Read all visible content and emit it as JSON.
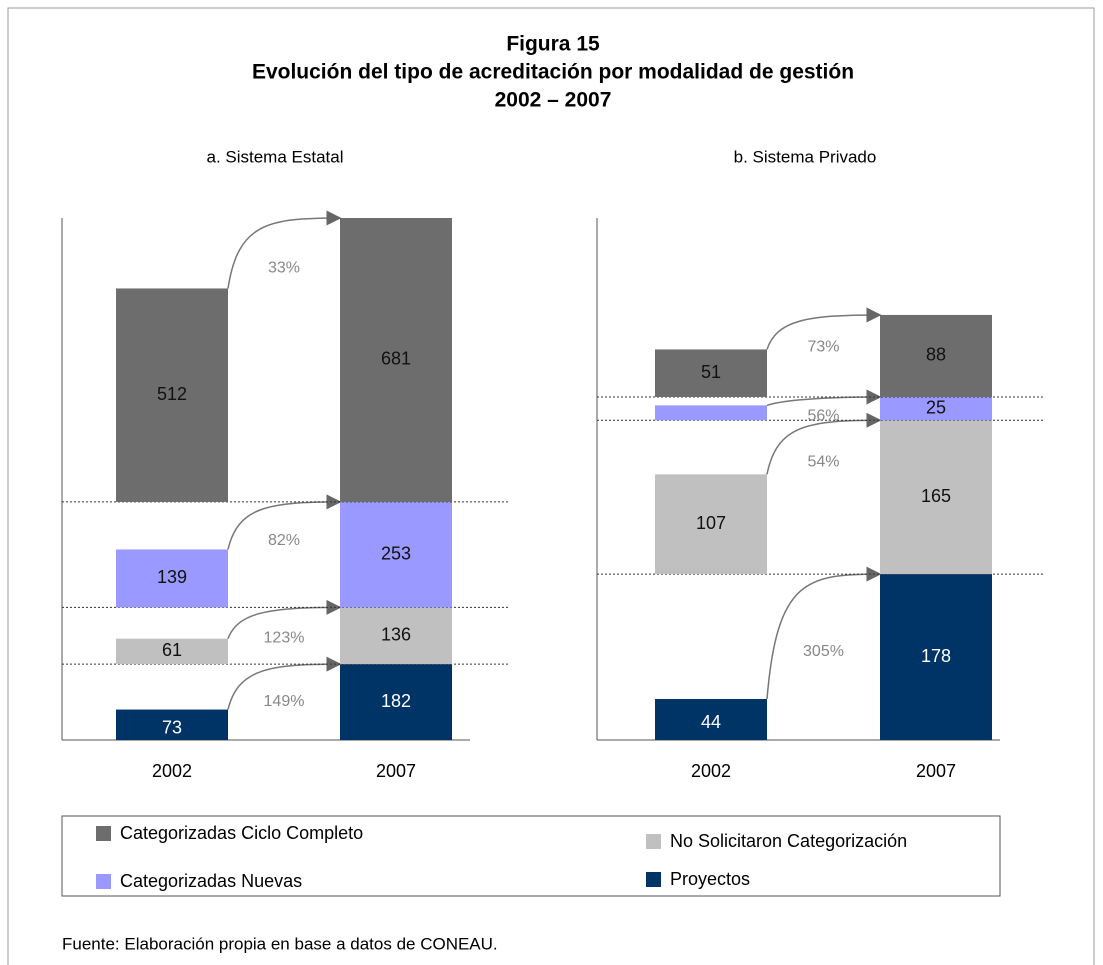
{
  "header": {
    "title": "Figura 15",
    "subtitle": "Evolución del tipo de acreditación por modalidad de gestión",
    "period": "2002 – 2007"
  },
  "chart_data": [
    {
      "type": "bar",
      "stacked": true,
      "title": "a. Sistema Estatal",
      "categories": [
        "2002",
        "2007"
      ],
      "ylim": [
        0,
        1252
      ],
      "series": [
        {
          "name": "Proyectos",
          "color": "#003366",
          "values": [
            73,
            182
          ]
        },
        {
          "name": "No Solicitaron Categorización",
          "color": "#c0c0c0",
          "values": [
            61,
            136
          ]
        },
        {
          "name": "Categorizadas Nuevas",
          "color": "#9999ff",
          "values": [
            139,
            253
          ]
        },
        {
          "name": "Categorizadas Ciclo Completo",
          "color": "#6d6d6d",
          "values": [
            512,
            681
          ]
        }
      ],
      "growth": {
        "values": [
          149,
          123,
          82,
          33
        ],
        "value_labels": [
          "149%",
          "123%",
          "82%",
          "33%"
        ]
      }
    },
    {
      "type": "bar",
      "stacked": true,
      "title": "b. Sistema Privado",
      "categories": [
        "2002",
        "2007"
      ],
      "ylim": [
        0,
        560
      ],
      "series": [
        {
          "name": "Proyectos",
          "color": "#003366",
          "values": [
            44,
            178
          ]
        },
        {
          "name": "No Solicitaron Categorización",
          "color": "#c0c0c0",
          "values": [
            107,
            165
          ]
        },
        {
          "name": "Categorizadas Nuevas",
          "color": "#9999ff",
          "values": [
            16,
            25
          ]
        },
        {
          "name": "Categorizadas Ciclo Completo",
          "color": "#6d6d6d",
          "values": [
            51,
            88
          ]
        }
      ],
      "growth": {
        "values": [
          305,
          54,
          56,
          73
        ],
        "value_labels": [
          "305%",
          "54%",
          "56%",
          "73%"
        ]
      }
    }
  ],
  "source": "Fuente: Elaboración propia en base a datos de CONEAU."
}
